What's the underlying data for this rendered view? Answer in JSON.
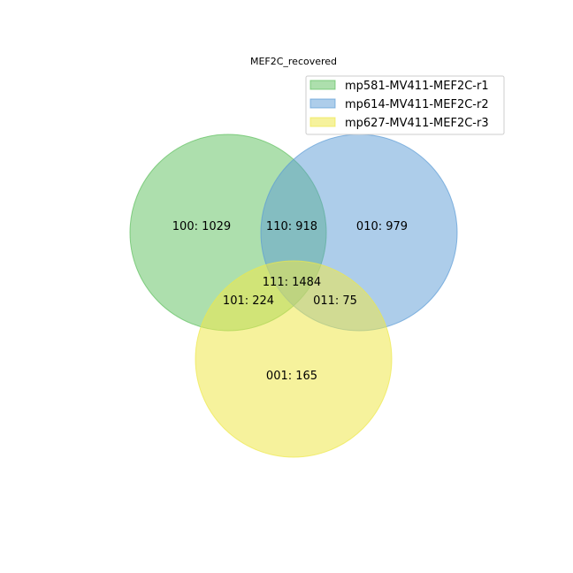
{
  "title": "MEF2C_recovered",
  "sets": [
    {
      "name": "mp581-MV411-MEF2C-r1",
      "color": "#5cbf5c"
    },
    {
      "name": "mp614-MV411-MEF2C-r2",
      "color": "#5b9bd5"
    },
    {
      "name": "mp627-MV411-MEF2C-r3",
      "color": "#eee84a"
    }
  ],
  "regions": {
    "r100": "100: 1029",
    "r010": "010: 979",
    "r001": "001: 165",
    "r110": "110: 918",
    "r101": "101: 224",
    "r011": "011: 75",
    "r111": "111: 1484"
  }
}
